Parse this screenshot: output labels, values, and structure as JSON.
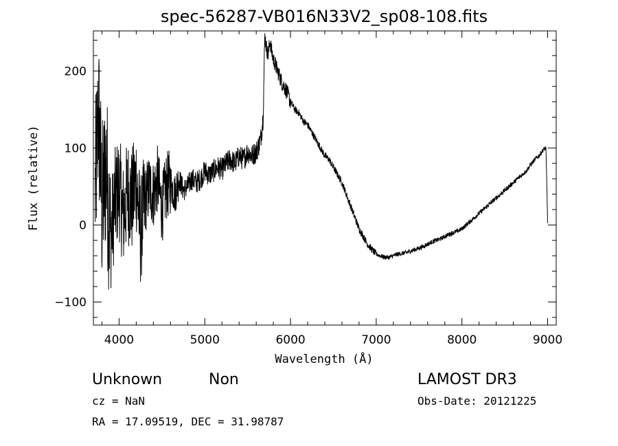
{
  "chart_data": {
    "type": "line",
    "title": "spec-56287-VB016N33V2_sp08-108.fits",
    "xlabel": "Wavelength (Å)",
    "ylabel": "Flux (relative)",
    "xlim": [
      3700,
      9100
    ],
    "ylim": [
      -130,
      252
    ],
    "x_ticks": [
      4000,
      5000,
      6000,
      7000,
      8000,
      9000
    ],
    "y_ticks": [
      -100,
      0,
      100,
      200
    ],
    "grid": false,
    "line_color": "#000000",
    "series": [
      {
        "x": [
          3720,
          3760,
          3800,
          3850,
          3900,
          3950,
          4000,
          4050,
          4100,
          4150,
          4200,
          4250,
          4300,
          4350,
          4400,
          4450,
          4500,
          4550,
          4600,
          4650,
          4700,
          4750,
          4800,
          4850,
          4900,
          4950,
          5000,
          5050,
          5100,
          5150,
          5200,
          5250,
          5300,
          5350,
          5400,
          5450,
          5500,
          5550,
          5600,
          5650,
          5680,
          5700,
          5720,
          5740,
          5760,
          5780,
          5800,
          5850,
          5900,
          5950,
          6000,
          6050,
          6100,
          6150,
          6200,
          6250,
          6300,
          6350,
          6400,
          6450,
          6500,
          6550,
          6600,
          6650,
          6700,
          6750,
          6800,
          6850,
          6900,
          6950,
          7000,
          7050,
          7100,
          7150,
          7200,
          7250,
          7300,
          7350,
          7400,
          7450,
          7500,
          7550,
          7600,
          7650,
          7700,
          7750,
          7800,
          7850,
          7900,
          7950,
          8000,
          8050,
          8100,
          8150,
          8200,
          8250,
          8300,
          8350,
          8400,
          8450,
          8500,
          8550,
          8600,
          8650,
          8700,
          8750,
          8800,
          8850,
          8900,
          8950,
          8980,
          9000
        ],
        "y": [
          40,
          150,
          20,
          80,
          -20,
          30,
          50,
          10,
          45,
          30,
          60,
          -10,
          30,
          50,
          40,
          60,
          20,
          50,
          55,
          40,
          60,
          45,
          50,
          60,
          55,
          60,
          70,
          65,
          70,
          75,
          72,
          80,
          85,
          80,
          90,
          85,
          95,
          90,
          95,
          110,
          140,
          245,
          230,
          220,
          240,
          225,
          215,
          200,
          185,
          175,
          160,
          150,
          145,
          135,
          130,
          120,
          110,
          100,
          90,
          85,
          75,
          65,
          55,
          40,
          25,
          10,
          -5,
          -15,
          -25,
          -32,
          -38,
          -40,
          -42,
          -42,
          -40,
          -38,
          -37,
          -36,
          -34,
          -32,
          -30,
          -28,
          -25,
          -22,
          -20,
          -18,
          -15,
          -12,
          -10,
          -8,
          -5,
          0,
          5,
          10,
          15,
          20,
          25,
          30,
          35,
          40,
          45,
          50,
          55,
          60,
          65,
          70,
          78,
          85,
          90,
          98,
          100,
          5
        ]
      }
    ]
  },
  "annotations": {
    "object_class": "Unknown",
    "object_subclass": "Non",
    "survey": "LAMOST DR3",
    "redshift": "cz = NaN",
    "obs_date": "Obs-Date: 20121225",
    "coords": "RA =  17.09519, DEC =  31.98787"
  }
}
